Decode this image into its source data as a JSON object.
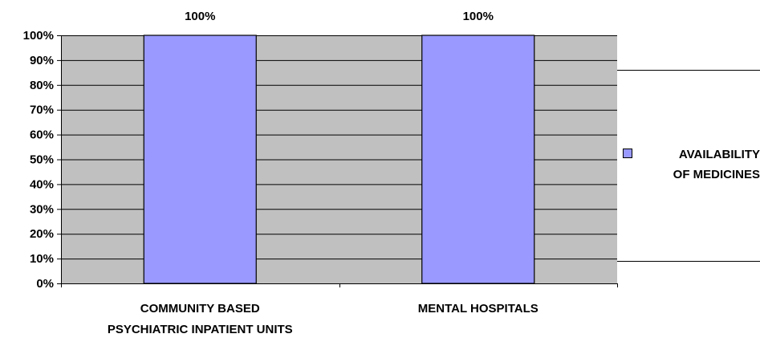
{
  "chart_data": {
    "type": "bar",
    "categories": [
      [
        "COMMUNITY BASED",
        "PSYCHIATRIC INPATIENT UNITS"
      ],
      [
        "MENTAL HOSPITALS"
      ]
    ],
    "series": [
      {
        "name": [
          "AVAILABILITY",
          "OF MEDICINES"
        ],
        "values": [
          100,
          100
        ]
      }
    ],
    "data_labels": [
      "100%",
      "100%"
    ],
    "ylim": [
      0,
      100
    ],
    "y_ticks": [
      0,
      10,
      20,
      30,
      40,
      50,
      60,
      70,
      80,
      90,
      100
    ],
    "y_tick_format": "percent",
    "grid": true,
    "legend_position": "right",
    "colors": {
      "plot_background": "#c0c0c0",
      "bar_fill": "#9999ff",
      "bar_stroke": "#000000",
      "gridline": "#000000"
    }
  }
}
